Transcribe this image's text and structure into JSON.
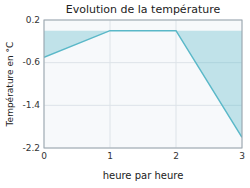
{
  "chart_data": {
    "type": "area",
    "title": "Evolution de la température",
    "xlabel": "heure par heure",
    "ylabel": "Température en °C",
    "x": [
      0,
      1,
      2,
      3
    ],
    "values": [
      -0.5,
      0.0,
      0.0,
      -2.0
    ],
    "baseline": 0.0,
    "color": "#5ab8c8",
    "xlim": [
      0,
      3
    ],
    "ylim": [
      -2.2,
      0.2
    ],
    "xticks": [
      0,
      1,
      2,
      3
    ],
    "yticks": [
      0.2,
      -0.6,
      -1.4,
      -2.2
    ],
    "grid": true
  }
}
